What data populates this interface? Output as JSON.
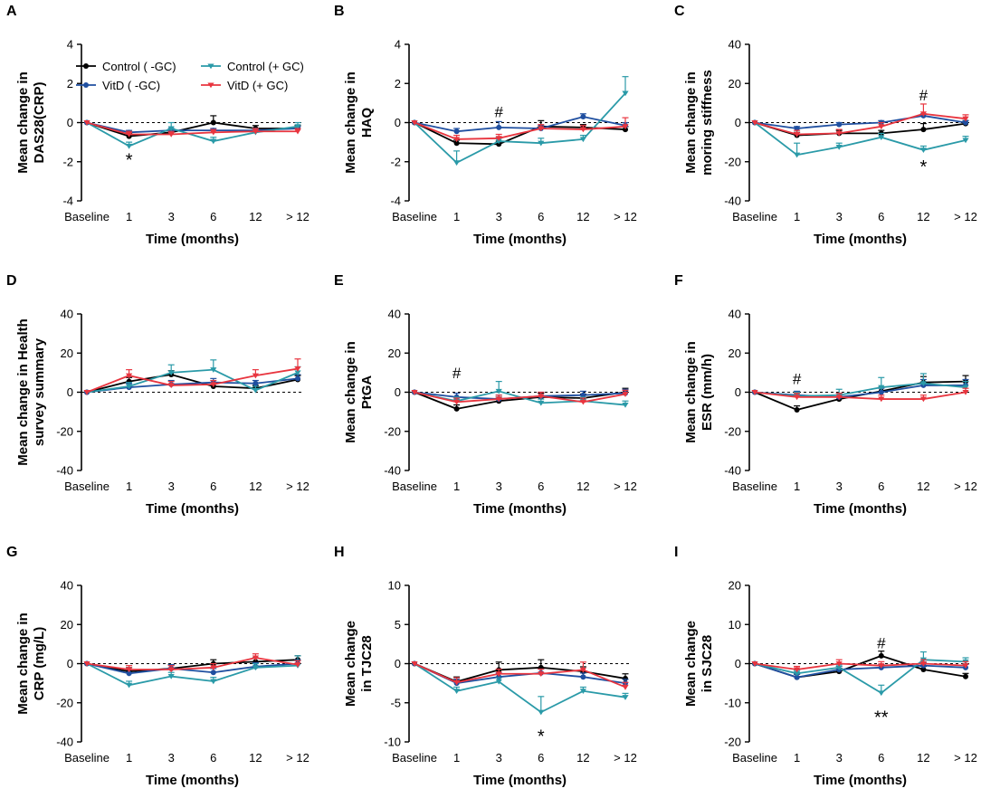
{
  "figure": {
    "legend": [
      {
        "name": "Control ( -GC)",
        "color": "#000000",
        "marker": "circle"
      },
      {
        "name": "VitD ( -GC)",
        "color": "#1f4fa0",
        "marker": "circle"
      },
      {
        "name": "Control (+ GC)",
        "color": "#2a9aa8",
        "marker": "triangle-down"
      },
      {
        "name": "VitD (+ GC)",
        "color": "#e8353f",
        "marker": "triangle-down"
      }
    ]
  },
  "chart_data": [
    {
      "type": "line",
      "panel": "A",
      "ylabel": [
        "Mean change in",
        "DAS28(CRP)"
      ],
      "xlabel": "Time (months)",
      "categories": [
        "Baseline",
        "1",
        "3",
        "6",
        "12",
        "> 12"
      ],
      "ylim": [
        -4,
        4
      ],
      "yticks": [
        -4,
        -2,
        0,
        2,
        4
      ],
      "series": [
        {
          "name": "Control ( -GC)",
          "values": [
            0,
            -0.7,
            -0.5,
            0,
            -0.3,
            -0.3
          ],
          "err": [
            0,
            0.15,
            0.15,
            0.35,
            0.15,
            0.15
          ]
        },
        {
          "name": "VitD ( -GC)",
          "values": [
            0,
            -0.5,
            -0.4,
            -0.4,
            -0.4,
            -0.3
          ],
          "err": [
            0,
            0.1,
            0.1,
            0.1,
            0.1,
            0.1
          ]
        },
        {
          "name": "Control (+ GC)",
          "values": [
            0,
            -1.2,
            -0.3,
            -0.95,
            -0.5,
            -0.2
          ],
          "err": [
            0,
            0.2,
            0.3,
            0.2,
            0.2,
            0.2
          ]
        },
        {
          "name": "VitD (+ GC)",
          "values": [
            0,
            -0.6,
            -0.6,
            -0.5,
            -0.45,
            -0.45
          ],
          "err": [
            0,
            0.15,
            0.15,
            0.15,
            0.15,
            0.15
          ]
        }
      ],
      "annotations": [
        {
          "text": "*",
          "x": "1",
          "y": -1.75
        }
      ]
    },
    {
      "type": "line",
      "panel": "B",
      "ylabel": [
        "Mean change in",
        "HAQ"
      ],
      "xlabel": "Time (months)",
      "categories": [
        "Baseline",
        "1",
        "3",
        "6",
        "12",
        "> 12"
      ],
      "ylim": [
        -4,
        4
      ],
      "yticks": [
        -4,
        -2,
        0,
        2,
        4
      ],
      "series": [
        {
          "name": "Control ( -GC)",
          "values": [
            0,
            -1.05,
            -1.1,
            -0.2,
            -0.25,
            -0.35
          ],
          "err": [
            0,
            0.15,
            0.15,
            0.3,
            0.15,
            0.15
          ]
        },
        {
          "name": "VitD ( -GC)",
          "values": [
            0,
            -0.45,
            -0.25,
            -0.3,
            0.3,
            -0.15
          ],
          "err": [
            0,
            0.15,
            0.3,
            0.15,
            0.15,
            0.15
          ]
        },
        {
          "name": "Control (+ GC)",
          "values": [
            0,
            -2.05,
            -0.95,
            -1.05,
            -0.85,
            1.5
          ],
          "err": [
            0,
            0.6,
            0.2,
            0.25,
            0.2,
            0.85
          ]
        },
        {
          "name": "VitD (+ GC)",
          "values": [
            0,
            -0.85,
            -0.8,
            -0.3,
            -0.35,
            -0.2
          ],
          "err": [
            0,
            0.2,
            0.2,
            0.2,
            0.2,
            0.45
          ]
        }
      ],
      "annotations": [
        {
          "text": "#",
          "x": "3",
          "y": 0.55
        }
      ]
    },
    {
      "type": "line",
      "panel": "C",
      "ylabel": [
        "Mean change in",
        "moring stiffness"
      ],
      "xlabel": "Time (months)",
      "categories": [
        "Baseline",
        "1",
        "3",
        "6",
        "12",
        "> 12"
      ],
      "ylim": [
        -40,
        40
      ],
      "yticks": [
        -40,
        -20,
        0,
        20,
        40
      ],
      "series": [
        {
          "name": "Control ( -GC)",
          "values": [
            0,
            -6.5,
            -5.5,
            -5.5,
            -3.5,
            -0.5
          ],
          "err": [
            0,
            1.5,
            1.5,
            1.5,
            3,
            1.5
          ]
        },
        {
          "name": "VitD ( -GC)",
          "values": [
            0,
            -3,
            -1,
            0,
            3.5,
            0
          ],
          "err": [
            0,
            1,
            1,
            1,
            1,
            1
          ]
        },
        {
          "name": "Control (+ GC)",
          "values": [
            0,
            -16.5,
            -12.5,
            -7.5,
            -14,
            -9
          ],
          "err": [
            0,
            6,
            2,
            2,
            2,
            2
          ]
        },
        {
          "name": "VitD (+ GC)",
          "values": [
            0,
            -6,
            -5.5,
            -2,
            4.5,
            2
          ],
          "err": [
            0,
            2,
            2,
            2,
            5,
            2
          ]
        }
      ],
      "annotations": [
        {
          "text": "#",
          "x": "12",
          "y": 14
        },
        {
          "text": "*",
          "x": "12",
          "y": -21
        }
      ]
    },
    {
      "type": "line",
      "panel": "D",
      "ylabel": [
        "Mean change in Health",
        "survey summary"
      ],
      "xlabel": "Time (months)",
      "categories": [
        "Baseline",
        "1",
        "3",
        "6",
        "12",
        "> 12"
      ],
      "ylim": [
        -40,
        40
      ],
      "yticks": [
        -40,
        -20,
        0,
        20,
        40
      ],
      "series": [
        {
          "name": "Control ( -GC)",
          "values": [
            0,
            5.5,
            9,
            3,
            2,
            6.5
          ],
          "err": [
            0,
            2,
            2,
            2,
            1.5,
            2
          ]
        },
        {
          "name": "VitD ( -GC)",
          "values": [
            0,
            2.5,
            4,
            5,
            4.5,
            7
          ],
          "err": [
            0,
            2,
            2,
            2,
            1.5,
            2
          ]
        },
        {
          "name": "Control (+ GC)",
          "values": [
            0,
            3,
            10,
            11.5,
            1,
            10
          ],
          "err": [
            0,
            2,
            4,
            5,
            2,
            3
          ]
        },
        {
          "name": "VitD (+ GC)",
          "values": [
            0,
            8.5,
            3.5,
            4,
            8.5,
            12
          ],
          "err": [
            0,
            3,
            2,
            2,
            3,
            5
          ]
        }
      ],
      "annotations": []
    },
    {
      "type": "line",
      "panel": "E",
      "ylabel": [
        "Mean change in",
        "PtGA"
      ],
      "xlabel": "Time (months)",
      "categories": [
        "Baseline",
        "1",
        "3",
        "6",
        "12",
        "> 12"
      ],
      "ylim": [
        -40,
        40
      ],
      "yticks": [
        -40,
        -20,
        0,
        20,
        40
      ],
      "series": [
        {
          "name": "Control ( -GC)",
          "values": [
            0,
            -8.5,
            -4.5,
            -2.5,
            -3,
            0
          ],
          "err": [
            0,
            2,
            2,
            2,
            2,
            2
          ]
        },
        {
          "name": "VitD ( -GC)",
          "values": [
            0,
            -2.5,
            -3.5,
            -2,
            -1.5,
            -0.5
          ],
          "err": [
            0,
            2,
            2,
            2,
            2,
            2
          ]
        },
        {
          "name": "Control (+ GC)",
          "values": [
            0,
            -4.5,
            0.5,
            -5.5,
            -4.5,
            -6.5
          ],
          "err": [
            0,
            2,
            5,
            2,
            2,
            2
          ]
        },
        {
          "name": "VitD (+ GC)",
          "values": [
            0,
            -5,
            -3.5,
            -2,
            -5,
            -1
          ],
          "err": [
            0,
            2,
            2,
            2,
            2,
            2
          ]
        }
      ],
      "annotations": [
        {
          "text": "#",
          "x": "1",
          "y": 10
        }
      ]
    },
    {
      "type": "line",
      "panel": "F",
      "ylabel": [
        "Mean change in",
        "ESR (mm/h)"
      ],
      "xlabel": "Time (months)",
      "categories": [
        "Baseline",
        "1",
        "3",
        "6",
        "12",
        "> 12"
      ],
      "ylim": [
        -40,
        40
      ],
      "yticks": [
        -40,
        -20,
        0,
        20,
        40
      ],
      "series": [
        {
          "name": "Control ( -GC)",
          "values": [
            0,
            -9,
            -3.5,
            0.5,
            5,
            5.5
          ],
          "err": [
            0,
            2,
            2,
            2,
            3,
            3
          ]
        },
        {
          "name": "VitD ( -GC)",
          "values": [
            0,
            -1.5,
            -2.5,
            0,
            3.5,
            3.5
          ],
          "err": [
            0,
            2,
            2,
            2,
            3,
            3
          ]
        },
        {
          "name": "Control (+ GC)",
          "values": [
            0,
            -2,
            -1.5,
            2.5,
            4.5,
            2.5
          ],
          "err": [
            0,
            2,
            3,
            5,
            5,
            3
          ]
        },
        {
          "name": "VitD (+ GC)",
          "values": [
            0,
            -2.5,
            -2.5,
            -3.5,
            -3.5,
            0
          ],
          "err": [
            0,
            2,
            2,
            2,
            2,
            2
          ]
        }
      ],
      "annotations": [
        {
          "text": "#",
          "x": "1",
          "y": 7
        }
      ]
    },
    {
      "type": "line",
      "panel": "G",
      "ylabel": [
        "Mean change in",
        "CRP (mg/L)"
      ],
      "xlabel": "Time (months)",
      "categories": [
        "Baseline",
        "1",
        "3",
        "6",
        "12",
        "> 12"
      ],
      "ylim": [
        -40,
        40
      ],
      "yticks": [
        -40,
        -20,
        0,
        20,
        40
      ],
      "series": [
        {
          "name": "Control ( -GC)",
          "values": [
            0,
            -4,
            -2.5,
            0,
            1,
            2
          ],
          "err": [
            0,
            2,
            2,
            2,
            2,
            2
          ]
        },
        {
          "name": "VitD ( -GC)",
          "values": [
            0,
            -5,
            -2.5,
            -4.5,
            -1.5,
            0
          ],
          "err": [
            0,
            2,
            2,
            2,
            2,
            2
          ]
        },
        {
          "name": "Control (+ GC)",
          "values": [
            0,
            -11,
            -6.5,
            -9,
            -2,
            -1
          ],
          "err": [
            0,
            2,
            2,
            2,
            2,
            5
          ]
        },
        {
          "name": "VitD (+ GC)",
          "values": [
            0,
            -3,
            -3,
            -2,
            3,
            -0.5
          ],
          "err": [
            0,
            2,
            2,
            2,
            2,
            2
          ]
        }
      ],
      "annotations": []
    },
    {
      "type": "line",
      "panel": "H",
      "ylabel": [
        "Mean change",
        "in TJC28"
      ],
      "xlabel": "Time (months)",
      "categories": [
        "Baseline",
        "1",
        "3",
        "6",
        "12",
        "> 12"
      ],
      "ylim": [
        -10,
        10
      ],
      "yticks": [
        -10,
        -5,
        0,
        5,
        10
      ],
      "series": [
        {
          "name": "Control ( -GC)",
          "values": [
            0,
            -2.3,
            -0.8,
            -0.5,
            -1,
            -1.9
          ],
          "err": [
            0,
            0.6,
            1,
            1,
            0.6,
            0.6
          ]
        },
        {
          "name": "VitD ( -GC)",
          "values": [
            0,
            -2.5,
            -1.7,
            -1.2,
            -1.7,
            -2.5
          ],
          "err": [
            0,
            0.5,
            0.5,
            0.5,
            0.5,
            0.5
          ]
        },
        {
          "name": "Control (+ GC)",
          "values": [
            0,
            -3.5,
            -2.3,
            -6.2,
            -3.5,
            -4.3
          ],
          "err": [
            0,
            0.5,
            0.5,
            2,
            0.5,
            0.5
          ]
        },
        {
          "name": "VitD (+ GC)",
          "values": [
            0,
            -2.4,
            -1.3,
            -1.3,
            -0.8,
            -3
          ],
          "err": [
            0,
            0.6,
            0.6,
            0.6,
            1,
            0.6
          ]
        }
      ],
      "annotations": [
        {
          "text": "*",
          "x": "6",
          "y": -8.9
        }
      ]
    },
    {
      "type": "line",
      "panel": "I",
      "ylabel": [
        "Mean change",
        "in SJC28"
      ],
      "xlabel": "Time (months)",
      "categories": [
        "Baseline",
        "1",
        "3",
        "6",
        "12",
        "> 12"
      ],
      "ylim": [
        -20,
        20
      ],
      "yticks": [
        -20,
        -10,
        0,
        10,
        20
      ],
      "series": [
        {
          "name": "Control ( -GC)",
          "values": [
            0,
            -3.5,
            -2,
            2,
            -1.5,
            -3.3
          ],
          "err": [
            0,
            0.8,
            0.8,
            1.2,
            0.8,
            0.8
          ]
        },
        {
          "name": "VitD ( -GC)",
          "values": [
            0,
            -3.5,
            -1.5,
            -1,
            -0.5,
            -1
          ],
          "err": [
            0,
            0.8,
            0.8,
            0.8,
            0.8,
            0.8
          ]
        },
        {
          "name": "Control (+ GC)",
          "values": [
            0,
            -2.5,
            -1,
            -7.5,
            1,
            0.5
          ],
          "err": [
            0,
            0.8,
            0.8,
            2,
            2,
            1
          ]
        },
        {
          "name": "VitD (+ GC)",
          "values": [
            0,
            -1.5,
            0,
            -0.5,
            0,
            -0.5
          ],
          "err": [
            0,
            0.8,
            1,
            1,
            1,
            1
          ]
        }
      ],
      "annotations": [
        {
          "text": "#",
          "x": "6",
          "y": 5.3
        },
        {
          "text": "**",
          "x": "6",
          "y": -13
        }
      ]
    }
  ]
}
